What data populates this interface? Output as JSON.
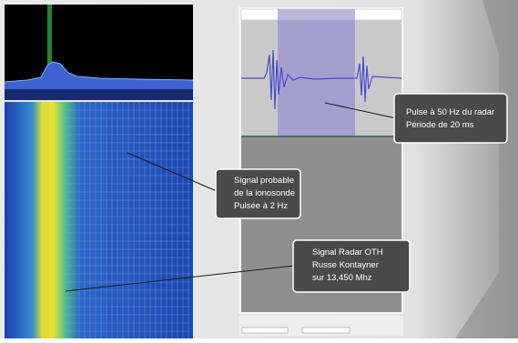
{
  "callouts": [
    {
      "lines": [
        "Pulse à 50 Hz du radar",
        "Période de 20 ms"
      ]
    },
    {
      "lines": [
        "Signal probable",
        "de la ionosonde",
        "Pulsée à 2 Hz"
      ]
    },
    {
      "lines": [
        "Signal Radar OTH",
        "Russe Kontayner",
        "sur 13,450 Mhz"
      ]
    }
  ]
}
